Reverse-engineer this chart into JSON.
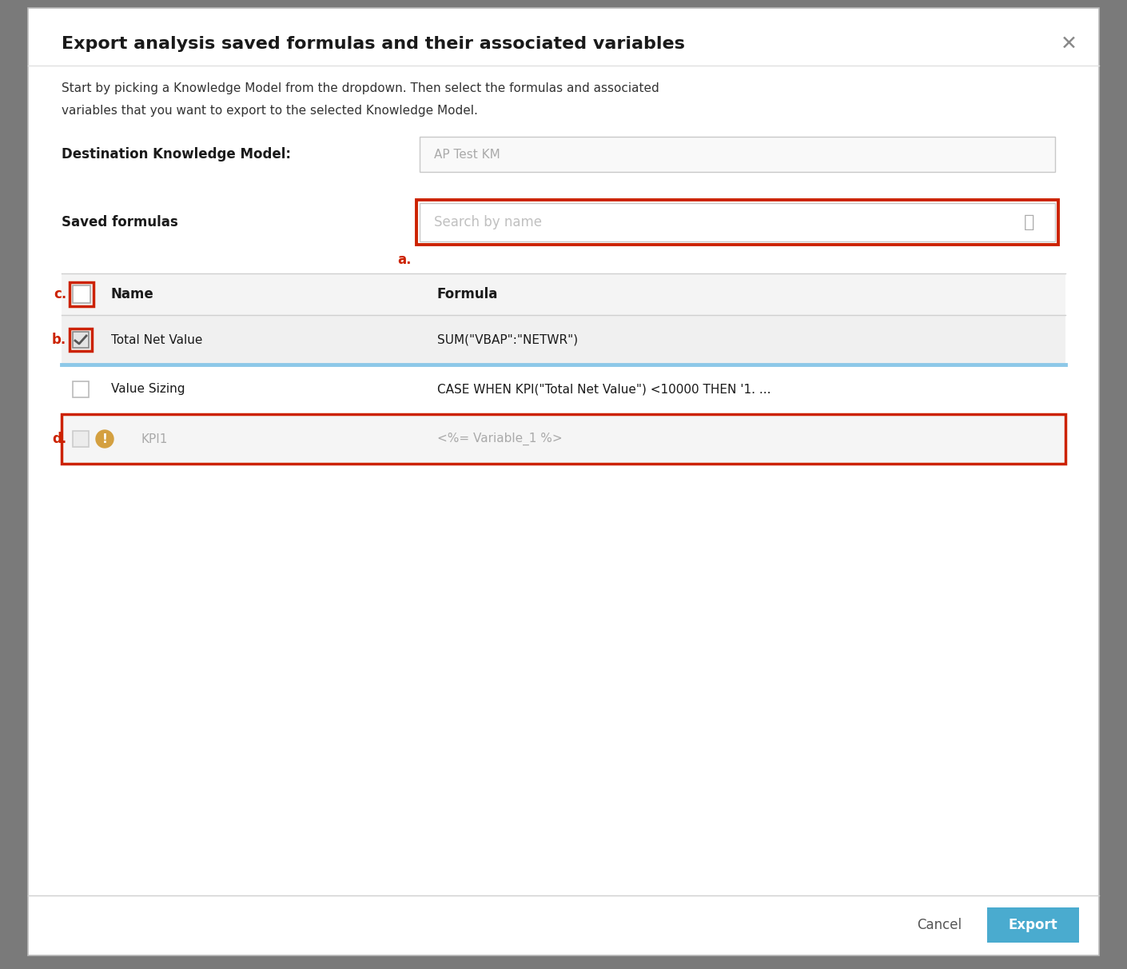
{
  "title": "Export analysis saved formulas and their associated variables",
  "subtitle_line1": "Start by picking a Knowledge Model from the dropdown. Then select the formulas and associated",
  "subtitle_line2": "variables that you want to export to the selected Knowledge Model.",
  "dest_label": "Destination Knowledge Model:",
  "dest_value": "AP Test KM",
  "saved_formulas_label": "Saved formulas",
  "search_placeholder": "Search by name",
  "col_name": "Name",
  "col_formula": "Formula",
  "rows": [
    {
      "checked": true,
      "name": "Total Net Value",
      "formula": "SUM(\"VBAP\":\"NETWR\")",
      "grayed": false,
      "warning": false,
      "highlighted": true
    },
    {
      "checked": false,
      "name": "Value Sizing",
      "formula": "CASE WHEN KPI(\"Total Net Value\") <10000 THEN '1. ...",
      "grayed": false,
      "warning": false,
      "highlighted": false
    },
    {
      "checked": false,
      "name": "KPI1",
      "formula": "<%= Variable_1 %>",
      "grayed": true,
      "warning": true,
      "highlighted": false
    }
  ],
  "cancel_label": "Cancel",
  "export_label": "Export",
  "bg_color": "#ffffff",
  "dialog_border": "#bbbbbb",
  "outer_bg": "#7a7a7a",
  "title_fontsize": 16,
  "body_fontsize": 11,
  "label_fontsize": 12,
  "red_color": "#cc2200",
  "blue_highlight": "#a8d4ee",
  "export_btn_color": "#4aabcf",
  "header_row_bg": "#f4f4f4",
  "checked_row_bg": "#f0f0f0",
  "normal_row_bg": "#ffffff",
  "grayed_row_bg": "#f5f5f5",
  "separator_color": "#d0d0d0",
  "blue_line_color": "#8cc8e8",
  "warning_color": "#d4a040",
  "close_color": "#888888",
  "input_border": "#c8c8c8",
  "red_border": "#cc2200"
}
